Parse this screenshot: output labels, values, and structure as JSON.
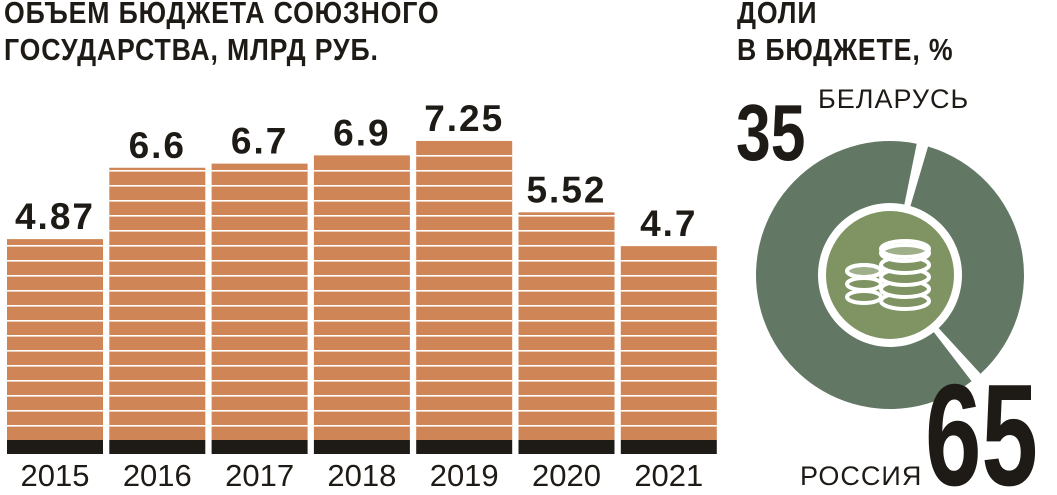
{
  "chart_data": [
    {
      "type": "bar",
      "title": "ОБЪЕМ БЮДЖЕТА СОЮЗНОГО ГОСУДАРСТВА, МЛРД РУБ.",
      "title_lines": [
        "ОБЪЕМ БЮДЖЕТА СОЮЗНОГО",
        "ГОСУДАРСТВА, МЛРД РУБ."
      ],
      "categories": [
        "2015",
        "2016",
        "2017",
        "2018",
        "2019",
        "2020",
        "2021"
      ],
      "values": [
        4.87,
        6.6,
        6.7,
        6.9,
        7.25,
        5.52,
        4.7
      ],
      "value_labels": [
        "4.87",
        "6.6",
        "6.7",
        "6.9",
        "7.25",
        "5.52",
        "4.7"
      ],
      "xlabel": "",
      "ylabel": "",
      "ylim": [
        0,
        8
      ],
      "grid": false,
      "colors": {
        "bar": "#cf8556",
        "bar_stripe": "#ffffff",
        "baseline": "#1e1a16"
      }
    },
    {
      "type": "pie",
      "style": "donut",
      "title": "ДОЛИ В БЮДЖЕТЕ, %",
      "title_lines": [
        "ДОЛИ",
        "В БЮДЖЕТЕ, %"
      ],
      "labels": [
        "БЕЛАРУСЬ",
        "РОССИЯ"
      ],
      "values": [
        35,
        65
      ],
      "value_labels": [
        "35",
        "65"
      ],
      "center_icon": "coins-icon",
      "colors": {
        "ring": "#627865",
        "center": "#7f9462",
        "icon": "#ffffff"
      }
    }
  ]
}
